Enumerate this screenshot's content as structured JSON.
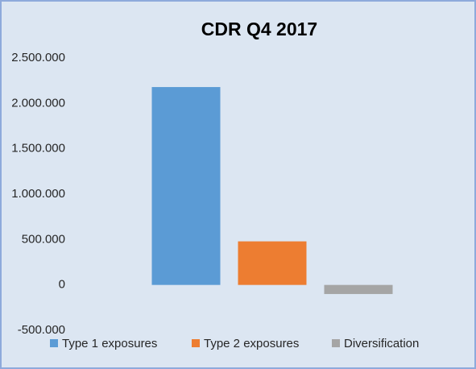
{
  "chart_data": {
    "type": "bar",
    "title": "CDR Q4 2017",
    "categories": [
      null
    ],
    "series": [
      {
        "name": "Type 1 exposures",
        "color": "#5b9bd5",
        "values": [
          2180000
        ]
      },
      {
        "name": "Type 2 exposures",
        "color": "#ed7d31",
        "values": [
          480000
        ]
      },
      {
        "name": "Diversification",
        "color": "#a5a5a5",
        "values": [
          -100000
        ]
      }
    ],
    "ylim": [
      -500000,
      2500000
    ],
    "yticks": [
      {
        "value": -500000,
        "label": "-500.000"
      },
      0,
      {
        "value": 500000,
        "label": "500.000"
      },
      {
        "value": 1000000,
        "label": "1.000.000"
      },
      {
        "value": 1500000,
        "label": "1.500.000"
      },
      {
        "value": 2000000,
        "label": "2.000.000"
      },
      {
        "value": 2500000,
        "label": "2.500.000"
      }
    ],
    "grid": false,
    "legend": "bottom"
  }
}
